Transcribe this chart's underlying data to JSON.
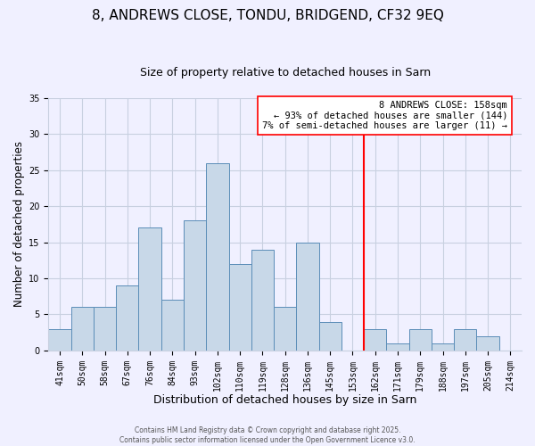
{
  "title": "8, ANDREWS CLOSE, TONDU, BRIDGEND, CF32 9EQ",
  "subtitle": "Size of property relative to detached houses in Sarn",
  "xlabel": "Distribution of detached houses by size in Sarn",
  "ylabel": "Number of detached properties",
  "bar_labels": [
    "41sqm",
    "50sqm",
    "58sqm",
    "67sqm",
    "76sqm",
    "84sqm",
    "93sqm",
    "102sqm",
    "110sqm",
    "119sqm",
    "128sqm",
    "136sqm",
    "145sqm",
    "153sqm",
    "162sqm",
    "171sqm",
    "179sqm",
    "188sqm",
    "197sqm",
    "205sqm",
    "214sqm"
  ],
  "bar_heights": [
    3,
    6,
    6,
    9,
    17,
    7,
    18,
    26,
    12,
    14,
    6,
    15,
    4,
    0,
    3,
    1,
    3,
    1,
    3,
    2,
    0
  ],
  "bar_color": "#c8d8e8",
  "bar_edgecolor": "#5b8db8",
  "vline_x": 13.5,
  "vline_color": "red",
  "ylim": [
    0,
    35
  ],
  "yticks": [
    0,
    5,
    10,
    15,
    20,
    25,
    30,
    35
  ],
  "annotation_title": "8 ANDREWS CLOSE: 158sqm",
  "annotation_line1": "← 93% of detached houses are smaller (144)",
  "annotation_line2": "7% of semi-detached houses are larger (11) →",
  "footer1": "Contains HM Land Registry data © Crown copyright and database right 2025.",
  "footer2": "Contains public sector information licensed under the Open Government Licence v3.0.",
  "background_color": "#f0f0ff",
  "grid_color": "#c8d0e0",
  "title_fontsize": 11,
  "subtitle_fontsize": 9,
  "tick_fontsize": 7,
  "ylabel_fontsize": 8.5,
  "xlabel_fontsize": 9,
  "ann_fontsize": 7.5,
  "footer_fontsize": 5.5
}
